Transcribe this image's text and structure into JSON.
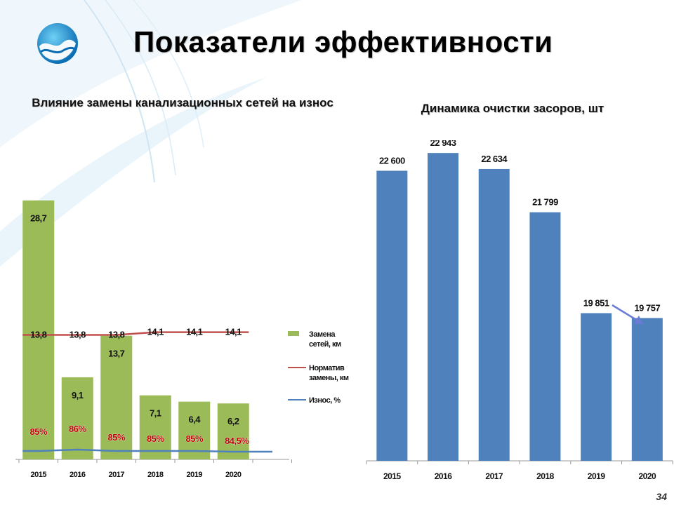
{
  "title": "Показатели эффективности",
  "page_number": "34",
  "colors": {
    "green_bar": "#9BBB59",
    "blue_bar": "#4F81BD",
    "norm_line": "#C0504D",
    "wear_line": "#4F81BD",
    "wear_text": "#C00000",
    "arrow": "#6A7BD6"
  },
  "chart_data": [
    {
      "type": "bar",
      "title": "Влияние замены канализационных сетей на износ",
      "categories": [
        "2015",
        "2016",
        "2017",
        "2018",
        "2019",
        "2020"
      ],
      "ylim": [
        0,
        30
      ],
      "legend_position": "right",
      "series": [
        {
          "name": "Замена сетей, км",
          "type": "bar",
          "values": [
            28.7,
            9.1,
            13.7,
            7.1,
            6.4,
            6.2
          ],
          "labels": [
            "28,7",
            "9,1",
            "13,7",
            "7,1",
            "6,4",
            "6,2"
          ]
        },
        {
          "name": "Норматив замены, км",
          "type": "line",
          "values": [
            13.8,
            13.8,
            13.8,
            14.1,
            14.1,
            14.1
          ],
          "labels": [
            "13,8",
            "13,8",
            "13,8",
            "14,1",
            "14,1",
            "14,1"
          ]
        },
        {
          "name": "Износ, %",
          "type": "line",
          "values": [
            85,
            86,
            85,
            85,
            85,
            84.5
          ],
          "labels": [
            "85%",
            "86%",
            "85%",
            "85%",
            "85%",
            "84,5%"
          ]
        }
      ]
    },
    {
      "type": "bar",
      "title": "Динамика очистки засоров, шт",
      "categories": [
        "2015",
        "2016",
        "2017",
        "2018",
        "2019",
        "2020"
      ],
      "ylim": [
        17000,
        23500
      ],
      "series": [
        {
          "name": "",
          "values": [
            22600,
            22943,
            22634,
            21799,
            19851,
            19757
          ],
          "labels": [
            "22 600",
            "22 943",
            "22 634",
            "21 799",
            "19 851",
            "19 757"
          ]
        }
      ]
    }
  ]
}
